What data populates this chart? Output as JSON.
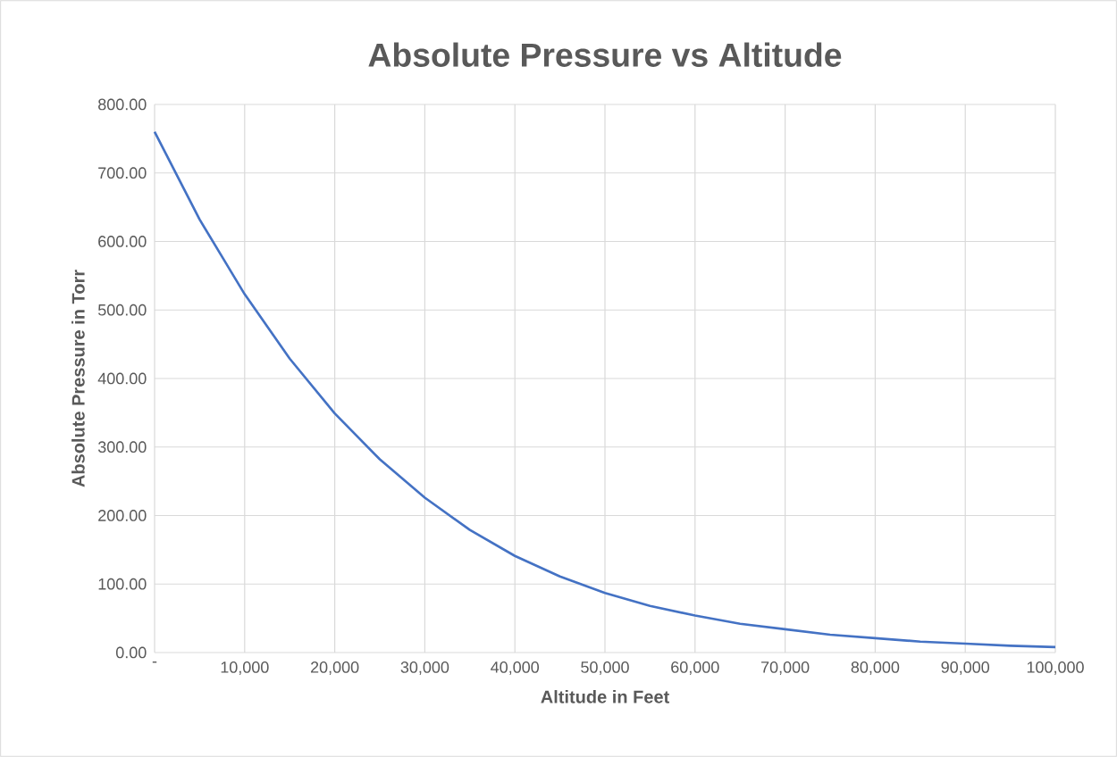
{
  "chart_data": {
    "type": "line",
    "title": "Absolute Pressure vs Altitude",
    "xlabel": "Altitude in Feet",
    "ylabel": "Absolute Pressure in Torr",
    "x": [
      0,
      5000,
      10000,
      15000,
      20000,
      25000,
      30000,
      35000,
      40000,
      45000,
      50000,
      55000,
      60000,
      65000,
      70000,
      75000,
      80000,
      85000,
      90000,
      95000,
      100000
    ],
    "series": [
      {
        "color": "#4472c4",
        "values": [
          760,
          632,
          523,
          429,
          349,
          282,
          226,
          179,
          141,
          111,
          87,
          68,
          54,
          42,
          34,
          26,
          21,
          16,
          13,
          10,
          8
        ]
      }
    ],
    "xlim": [
      0,
      100000
    ],
    "xticks": [
      {
        "value": 0,
        "label": "-"
      },
      {
        "value": 10000,
        "label": "10,000"
      },
      {
        "value": 20000,
        "label": "20,000"
      },
      {
        "value": 30000,
        "label": "30,000"
      },
      {
        "value": 40000,
        "label": "40,000"
      },
      {
        "value": 50000,
        "label": "50,000"
      },
      {
        "value": 60000,
        "label": "60,000"
      },
      {
        "value": 70000,
        "label": "70,000"
      },
      {
        "value": 80000,
        "label": "80,000"
      },
      {
        "value": 90000,
        "label": "90,000"
      },
      {
        "value": 100000,
        "label": "100,000"
      }
    ],
    "ylim": [
      0,
      800
    ],
    "yticks": [
      {
        "value": 0,
        "label": "0.00"
      },
      {
        "value": 100,
        "label": "100.00"
      },
      {
        "value": 200,
        "label": "200.00"
      },
      {
        "value": 300,
        "label": "300.00"
      },
      {
        "value": 400,
        "label": "400.00"
      },
      {
        "value": 500,
        "label": "500.00"
      },
      {
        "value": 600,
        "label": "600.00"
      },
      {
        "value": 700,
        "label": "700.00"
      },
      {
        "value": 800,
        "label": "800.00"
      }
    ],
    "grid": true
  }
}
